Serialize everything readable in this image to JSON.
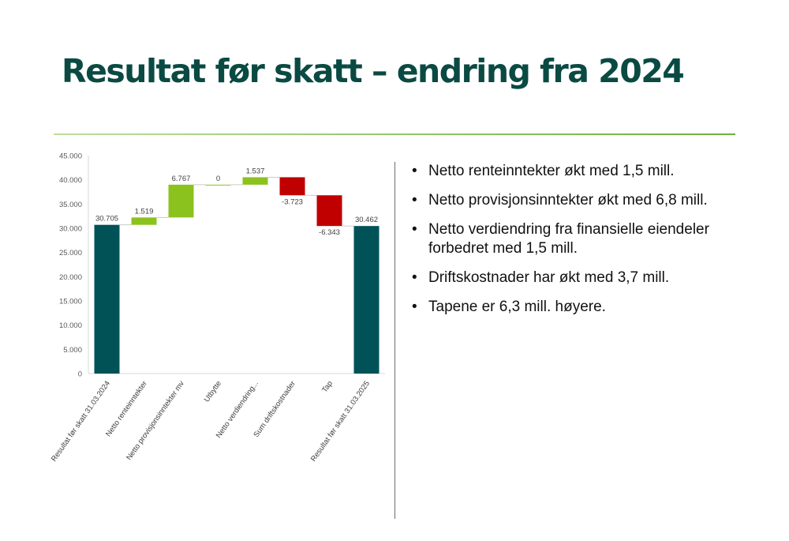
{
  "slide": {
    "title": "Resultat før skatt – endring fra 2024",
    "bullets": [
      "Netto renteinntekter økt med 1,5 mill.",
      "Netto provisjonsinntekter økt med 6,8 mill.",
      "Netto verdiendring fra finansielle eiendeler forbedret med 1,5 mill.",
      "Driftskostnader har økt med 3,7 mill.",
      "Tapene er 6,3 mill. høyere."
    ],
    "bullet_glyph": "•",
    "colors": {
      "title": "#0a4a43",
      "total": "#005257",
      "increase": "#8cc21e",
      "decrease": "#c00000",
      "rule": "#6fb13c"
    }
  },
  "chart_data": {
    "type": "waterfall",
    "categories": [
      "Resultat før skatt 31.03.2024",
      "Netto renteinntekter",
      "Netto provisjonsinntekter mv",
      "Utbytte",
      "Netto verdiendring...",
      "Sum driftskostnader",
      "Tap",
      "Resultat før skatt 31.03.2025"
    ],
    "values": [
      30705,
      1519,
      6767,
      0,
      1537,
      -3723,
      -6343,
      30462
    ],
    "kinds": [
      "total",
      "increase",
      "increase",
      "increase",
      "increase",
      "decrease",
      "decrease",
      "total"
    ],
    "data_labels": [
      "30.705",
      "1.519",
      "6.767",
      "0",
      "1.537",
      "-3.723",
      "-6.343",
      "30.462"
    ],
    "ylim": [
      0,
      45000
    ],
    "yticks": [
      0,
      5000,
      10000,
      15000,
      20000,
      25000,
      30000,
      35000,
      40000,
      45000
    ],
    "ytick_labels": [
      "0",
      "5.000",
      "10.000",
      "15.000",
      "20.000",
      "25.000",
      "30.000",
      "35.000",
      "40.000",
      "45.000"
    ],
    "grid": false,
    "legend": "none"
  }
}
